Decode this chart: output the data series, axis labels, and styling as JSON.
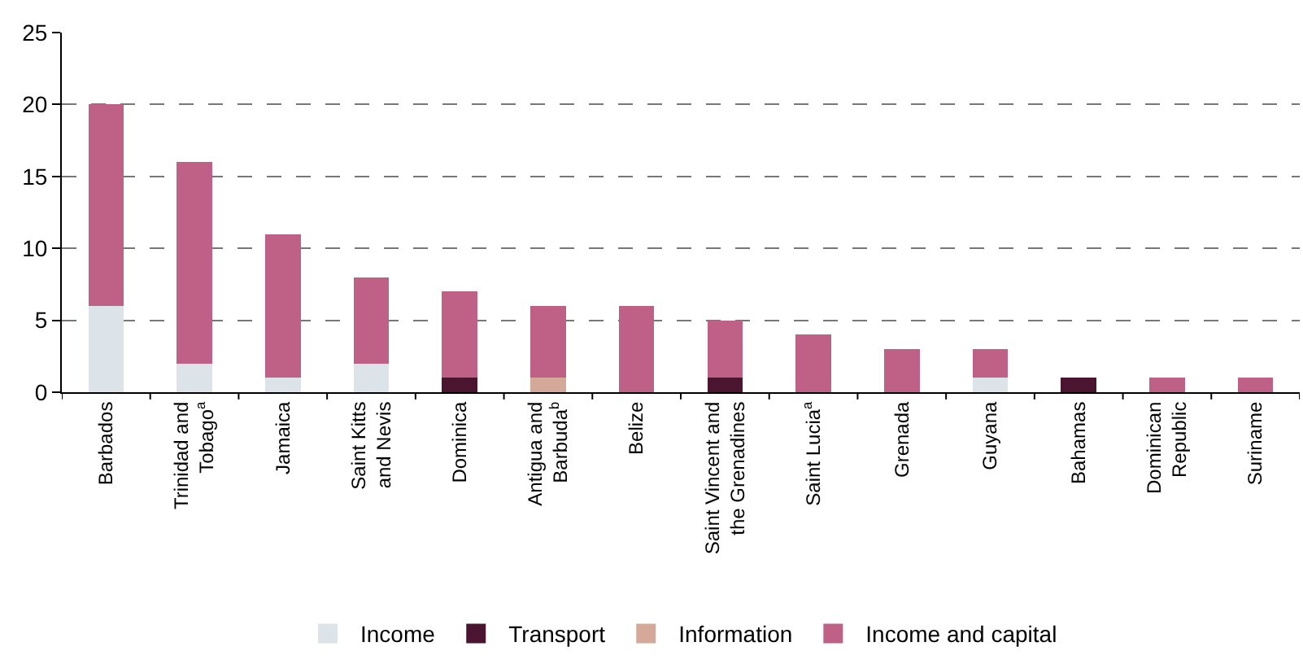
{
  "chart_data": {
    "type": "bar",
    "stacked": true,
    "categories": [
      "Barbados",
      "Trinidad and\nTobago$^{a}$",
      "Jamaica",
      "Saint Kitts\nand Nevis",
      "Dominica",
      "Antigua and\nBarbuda$^{b}$",
      "Belize",
      "Saint Vincent and\nthe Grenadines",
      "Saint Lucia$^{a}$",
      "Grenada",
      "Guyana",
      "Bahamas",
      "Dominican\nRepublic",
      "Suriname"
    ],
    "series": [
      {
        "name": "Income",
        "color": "#dce3e9",
        "values": [
          6,
          2,
          1,
          2,
          0,
          0,
          0,
          0,
          0,
          0,
          1,
          0,
          0,
          0
        ]
      },
      {
        "name": "Transport",
        "color": "#4b1430",
        "values": [
          0,
          0,
          0,
          0,
          1,
          0,
          0,
          1,
          0,
          0,
          0,
          1,
          0,
          0
        ]
      },
      {
        "name": "Information",
        "color": "#d4a999",
        "values": [
          0,
          0,
          0,
          0,
          0,
          1,
          0,
          0,
          0,
          0,
          0,
          0,
          0,
          0
        ]
      },
      {
        "name": "Income and capital",
        "color": "#bf6087",
        "values": [
          14,
          14,
          10,
          6,
          6,
          5,
          6,
          4,
          4,
          3,
          2,
          0,
          1,
          1
        ]
      }
    ],
    "ylim": [
      0,
      25
    ],
    "yticks": [
      0,
      5,
      10,
      15,
      20,
      25
    ],
    "grid": "y",
    "legend": "bottom"
  }
}
